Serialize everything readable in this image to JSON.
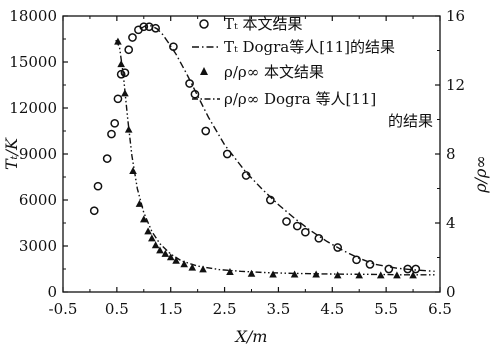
{
  "chart_data": {
    "type": "scatter",
    "xlabel": "X/m",
    "ylabel_left": "Tₜ/K",
    "ylabel_right": "ρ/ρ∞",
    "xlim": [
      -0.5,
      6.5
    ],
    "ylim_left": [
      0,
      18000
    ],
    "ylim_right": [
      0,
      16
    ],
    "xticks": [
      "-0.5",
      "0.5",
      "1.5",
      "2.5",
      "3.5",
      "4.5",
      "5.5",
      "6.5"
    ],
    "yticks_left": [
      "0",
      "3000",
      "6000",
      "9000",
      "12000",
      "15000",
      "18000"
    ],
    "yticks_right": [
      "0",
      "4",
      "8",
      "12",
      "16"
    ],
    "grid": false,
    "legend_position": "top-right",
    "legend": [
      {
        "symbol": "circle",
        "text": "Tₜ 本文结果"
      },
      {
        "symbol": "dash-dot",
        "text": "Tₜ Dogra等人[11]的结果"
      },
      {
        "symbol": "triangle",
        "text": "ρ/ρ∞ 本文结果"
      },
      {
        "symbol": "dash-dot-dot",
        "text": "ρ/ρ∞ Dogra 等人[11]",
        "text2": "的结果"
      }
    ],
    "series": [
      {
        "axis": "left",
        "marker": "circle",
        "x": [
          0.08,
          0.15,
          0.32,
          0.4,
          0.46,
          0.52,
          0.58,
          0.65,
          0.72,
          0.79,
          0.9,
          1.0,
          1.1,
          1.22,
          1.55,
          1.85,
          1.95,
          2.15,
          2.55,
          2.9,
          3.35,
          3.65,
          3.85,
          4.0,
          4.25,
          4.6,
          4.95,
          5.2,
          5.55,
          5.9,
          6.05
        ],
        "y": [
          5300,
          6900,
          8700,
          10300,
          11000,
          12600,
          14200,
          14300,
          15800,
          16600,
          17100,
          17300,
          17300,
          17200,
          16000,
          13600,
          12900,
          10500,
          9000,
          7600,
          6000,
          4600,
          4300,
          3900,
          3500,
          2900,
          2100,
          1800,
          1500,
          1500,
          1500
        ]
      },
      {
        "axis": "right",
        "marker": "triangle",
        "x": [
          0.52,
          0.58,
          0.65,
          0.72,
          0.8,
          0.92,
          1.0,
          1.08,
          1.15,
          1.22,
          1.3,
          1.4,
          1.5,
          1.6,
          1.75,
          1.9,
          2.1,
          2.6,
          3.0,
          3.4,
          3.8,
          4.2,
          4.6,
          5.0,
          5.4,
          5.7,
          6.0
        ],
        "y": [
          14.5,
          13.2,
          11.5,
          9.4,
          7.0,
          5.1,
          4.2,
          3.5,
          3.1,
          2.7,
          2.4,
          2.2,
          2.0,
          1.8,
          1.6,
          1.4,
          1.3,
          1.15,
          1.05,
          1.0,
          1.0,
          1.0,
          0.95,
          0.95,
          0.95,
          0.95,
          0.95
        ]
      },
      {
        "axis": "left",
        "line": "dash-dot",
        "x": [
          0.95,
          1.05,
          1.15,
          1.25,
          1.35,
          1.45,
          1.6,
          1.8,
          2.0,
          2.2,
          2.5,
          2.9,
          3.2,
          3.5,
          3.8,
          4.1,
          4.4,
          4.7,
          5.0,
          5.3,
          5.7,
          6.0,
          6.4
        ],
        "y": [
          17200,
          17400,
          17350,
          17150,
          16800,
          16300,
          15500,
          14200,
          12800,
          11400,
          9600,
          7800,
          6700,
          5700,
          4800,
          4000,
          3300,
          2700,
          2200,
          1800,
          1550,
          1450,
          1350
        ]
      },
      {
        "axis": "right",
        "line": "dash-dot-dot",
        "x": [
          0.48,
          0.55,
          0.62,
          0.7,
          0.78,
          0.88,
          1.0,
          1.15,
          1.3,
          1.5,
          1.7,
          2.0,
          2.4,
          2.8,
          3.3,
          3.8,
          4.3,
          4.8,
          5.3,
          5.8,
          6.2,
          6.4
        ],
        "y": [
          14.6,
          14.2,
          12.6,
          10.1,
          7.9,
          6.0,
          4.6,
          3.5,
          2.8,
          2.2,
          1.8,
          1.5,
          1.3,
          1.2,
          1.12,
          1.08,
          1.05,
          1.03,
          1.02,
          1.0,
          1.0,
          1.0
        ]
      }
    ]
  }
}
